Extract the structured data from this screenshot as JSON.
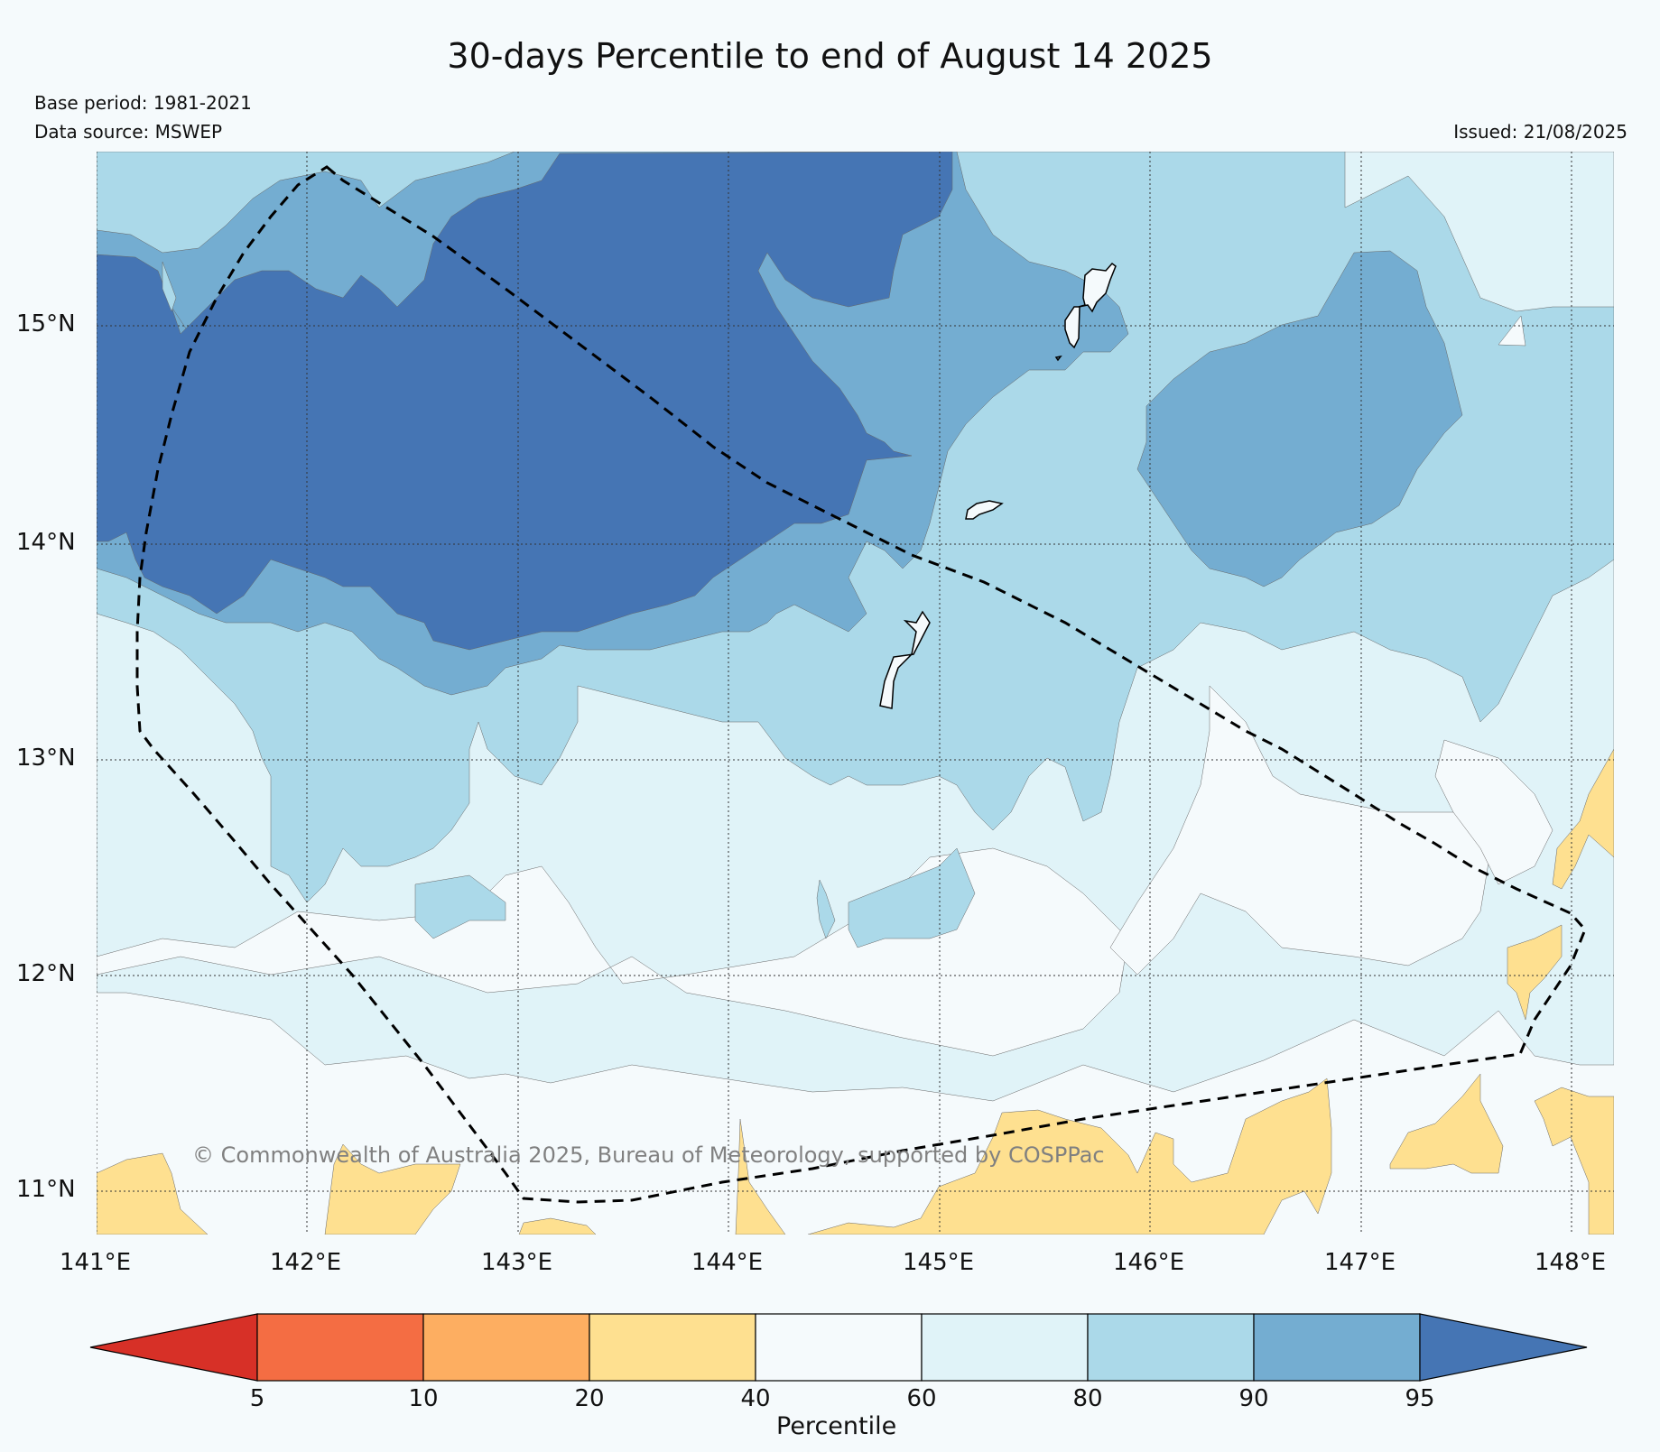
{
  "title": "30-days Percentile to end of August 14 2025",
  "base_period": "Base period: 1981-2021",
  "data_source": "Data source: MSWEP",
  "issued": "Issued: 21/08/2025",
  "copyright": "© Commonwealth of Australia 2025, Bureau of Meteorology, supported by COSPPac",
  "map": {
    "lat_labels": [
      "15°N",
      "14°N",
      "13°N",
      "12°N",
      "11°N"
    ],
    "lon_labels": [
      "141°E",
      "142°E",
      "143°E",
      "144°E",
      "145°E",
      "146°E",
      "147°E",
      "148°E"
    ],
    "lon_range": [
      141.0,
      148.2
    ],
    "lat_range": [
      10.8,
      15.82
    ],
    "background_percentile_band": "40-60"
  },
  "colorbar": {
    "title": "Percentile",
    "ticks": [
      "5",
      "10",
      "20",
      "40",
      "60",
      "80",
      "90",
      "95"
    ],
    "bands": [
      {
        "range": "<5",
        "color": "#d73027"
      },
      {
        "range": "5-10",
        "color": "#f46d43"
      },
      {
        "range": "10-20",
        "color": "#fdae61"
      },
      {
        "range": "20-40",
        "color": "#fee090"
      },
      {
        "range": "40-60",
        "color": "#f5fafc"
      },
      {
        "range": "60-80",
        "color": "#e0f3f8"
      },
      {
        "range": "80-90",
        "color": "#abd9e9"
      },
      {
        "range": "90-95",
        "color": "#74add1"
      },
      {
        "range": ">95",
        "color": "#4575b4"
      }
    ]
  }
}
